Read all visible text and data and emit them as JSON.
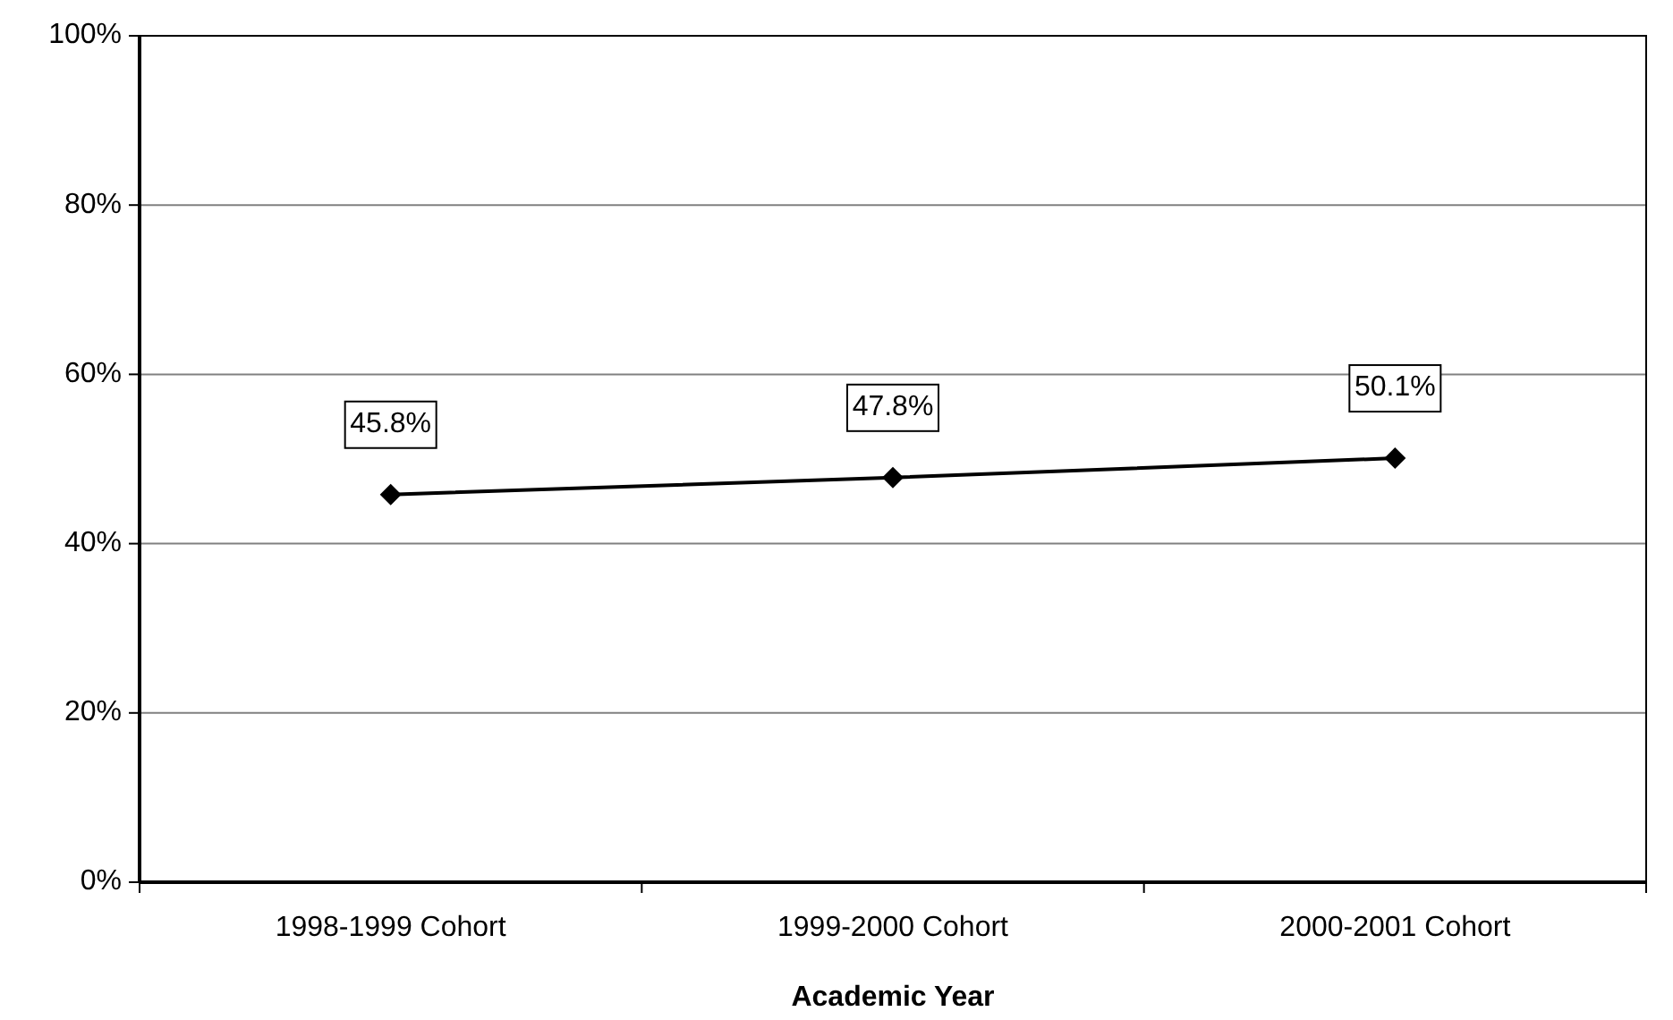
{
  "chart_data": {
    "type": "line",
    "xlabel": "Academic Year",
    "categories": [
      "1998-1999 Cohort",
      "1999-2000 Cohort",
      "2000-2001 Cohort"
    ],
    "series": [
      {
        "color": "#000000",
        "values": [
          45.8,
          47.8,
          50.1
        ],
        "value_labels": [
          "45.8%",
          "47.8%",
          "50.1%"
        ]
      }
    ],
    "ylim": [
      0,
      100
    ],
    "yticks": [
      {
        "value": 0,
        "label": "0%"
      },
      {
        "value": 20,
        "label": "20%"
      },
      {
        "value": 40,
        "label": "40%"
      },
      {
        "value": 60,
        "label": "60%"
      },
      {
        "value": 80,
        "label": "80%"
      },
      {
        "value": 100,
        "label": "100%"
      }
    ],
    "grid": "y",
    "marker": "diamond",
    "line_style": "solid"
  }
}
